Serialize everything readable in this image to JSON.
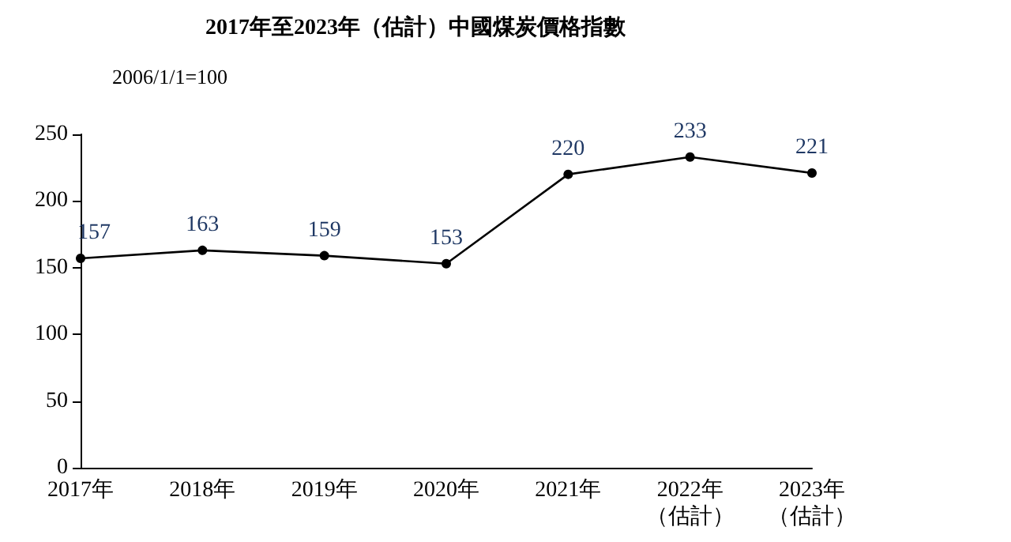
{
  "chart_data": {
    "type": "line",
    "title": "2017年至2023年（估計）中國煤炭價格指數",
    "ylabel": "2006/1/1=100",
    "categories": [
      "2017年",
      "2018年",
      "2019年",
      "2020年",
      "2021年",
      "2022年（估計）",
      "2023年（估計）"
    ],
    "series": [
      {
        "color": "#000000",
        "values": [
          157,
          163,
          159,
          153,
          220,
          233,
          221
        ]
      }
    ],
    "ylim": [
      0,
      250
    ],
    "yticks": [
      0,
      50,
      100,
      150,
      200,
      250
    ],
    "grid": false,
    "marker": "circle",
    "line_style": "solid",
    "data_labels": true
  }
}
